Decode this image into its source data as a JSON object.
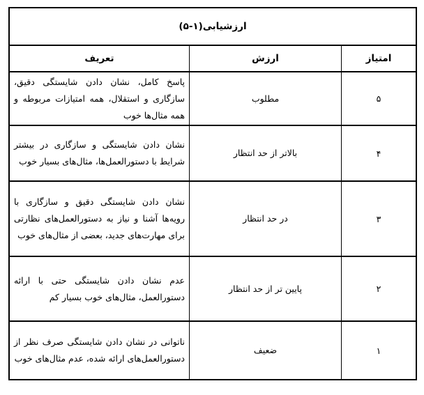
{
  "title": "ارزشیابی(۱-۵)",
  "headers": {
    "score": "امتیاز",
    "value": "ارزش",
    "definition": "تعریف"
  },
  "rows": [
    {
      "score": "۵",
      "value": "مطلوب",
      "definition": "پاسخ کامل، نشان دادن شایستگی دقیق، سازگاری و استقلال، همه امتیازات مربوطه و همه مثال‌ها خوب"
    },
    {
      "score": "۴",
      "value": "بالاتر از حد انتظار",
      "definition": "نشان دادن شایستگی و سازگاری در بیشتر شرایط با دستورالعمل‌ها، مثال‌های بسیار خوب"
    },
    {
      "score": "۳",
      "value": "در حد انتظار",
      "definition": "نشان دادن شایستگی دقیق و سازگاری با رویه‌ها آشنا و نیاز به دستورالعمل‌های نظارتی برای مهارت‌های جدید، بعضی از مثال‌های خوب"
    },
    {
      "score": "۲",
      "value": "پایین تر از حد انتظار",
      "definition": "عدم نشان دادن شایستگی حتی با ارائه دستورالعمل، مثال‌های خوب بسیار کم"
    },
    {
      "score": "۱",
      "value": "ضعیف",
      "definition": "ناتوانی در نشان دادن شایستگی صرف نظر از دستورالعمل‌های ارائه شده، عدم مثال‌های خوب"
    }
  ]
}
